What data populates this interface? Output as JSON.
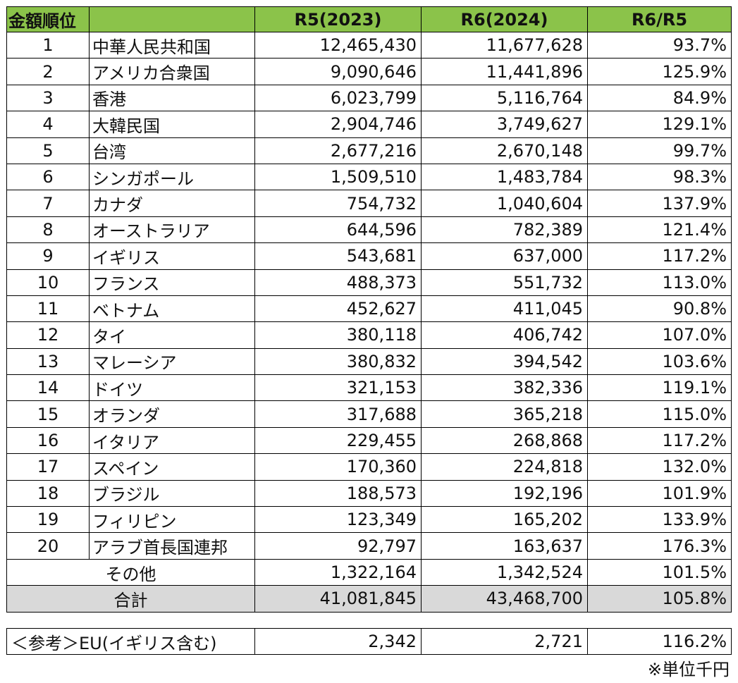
{
  "colors": {
    "header_bg": "#8bc34a",
    "total_bg": "#d9d9d9"
  },
  "headers": {
    "rank": "金額順位",
    "country": "",
    "r5": "R5(2023)",
    "r6": "R6(2024)",
    "ratio": "R6/R5"
  },
  "rows": [
    {
      "rank": "1",
      "country": "中華人民共和国",
      "r5": "12,465,430",
      "r6": "11,677,628",
      "ratio": "93.7%"
    },
    {
      "rank": "2",
      "country": "アメリカ合衆国",
      "r5": "9,090,646",
      "r6": "11,441,896",
      "ratio": "125.9%"
    },
    {
      "rank": "3",
      "country": "香港",
      "r5": "6,023,799",
      "r6": "5,116,764",
      "ratio": "84.9%"
    },
    {
      "rank": "4",
      "country": "大韓民国",
      "r5": "2,904,746",
      "r6": "3,749,627",
      "ratio": "129.1%"
    },
    {
      "rank": "5",
      "country": "台湾",
      "r5": "2,677,216",
      "r6": "2,670,148",
      "ratio": "99.7%"
    },
    {
      "rank": "6",
      "country": "シンガポール",
      "r5": "1,509,510",
      "r6": "1,483,784",
      "ratio": "98.3%"
    },
    {
      "rank": "7",
      "country": "カナダ",
      "r5": "754,732",
      "r6": "1,040,604",
      "ratio": "137.9%"
    },
    {
      "rank": "8",
      "country": "オーストラリア",
      "r5": "644,596",
      "r6": "782,389",
      "ratio": "121.4%"
    },
    {
      "rank": "9",
      "country": "イギリス",
      "r5": "543,681",
      "r6": "637,000",
      "ratio": "117.2%"
    },
    {
      "rank": "10",
      "country": "フランス",
      "r5": "488,373",
      "r6": "551,732",
      "ratio": "113.0%"
    },
    {
      "rank": "11",
      "country": "ベトナム",
      "r5": "452,627",
      "r6": "411,045",
      "ratio": "90.8%"
    },
    {
      "rank": "12",
      "country": "タイ",
      "r5": "380,118",
      "r6": "406,742",
      "ratio": "107.0%"
    },
    {
      "rank": "13",
      "country": "マレーシア",
      "r5": "380,832",
      "r6": "394,542",
      "ratio": "103.6%"
    },
    {
      "rank": "14",
      "country": "ドイツ",
      "r5": "321,153",
      "r6": "382,336",
      "ratio": "119.1%"
    },
    {
      "rank": "15",
      "country": "オランダ",
      "r5": "317,688",
      "r6": "365,218",
      "ratio": "115.0%"
    },
    {
      "rank": "16",
      "country": "イタリア",
      "r5": "229,455",
      "r6": "268,868",
      "ratio": "117.2%"
    },
    {
      "rank": "17",
      "country": "スペイン",
      "r5": "170,360",
      "r6": "224,818",
      "ratio": "132.0%"
    },
    {
      "rank": "18",
      "country": "ブラジル",
      "r5": "188,573",
      "r6": "192,196",
      "ratio": "101.9%"
    },
    {
      "rank": "19",
      "country": "フィリピン",
      "r5": "123,349",
      "r6": "165,202",
      "ratio": "133.9%"
    },
    {
      "rank": "20",
      "country": "アラブ首長国連邦",
      "r5": "92,797",
      "r6": "163,637",
      "ratio": "176.3%"
    }
  ],
  "others": {
    "label": "その他",
    "r5": "1,322,164",
    "r6": "1,342,524",
    "ratio": "101.5%"
  },
  "total": {
    "label": "合計",
    "r5": "41,081,845",
    "r6": "43,468,700",
    "ratio": "105.8%"
  },
  "reference": {
    "label": "＜参考＞EU(イギリス含む)",
    "r5": "2,342",
    "r6": "2,721",
    "ratio": "116.2%"
  },
  "unit_note": "※単位千円"
}
